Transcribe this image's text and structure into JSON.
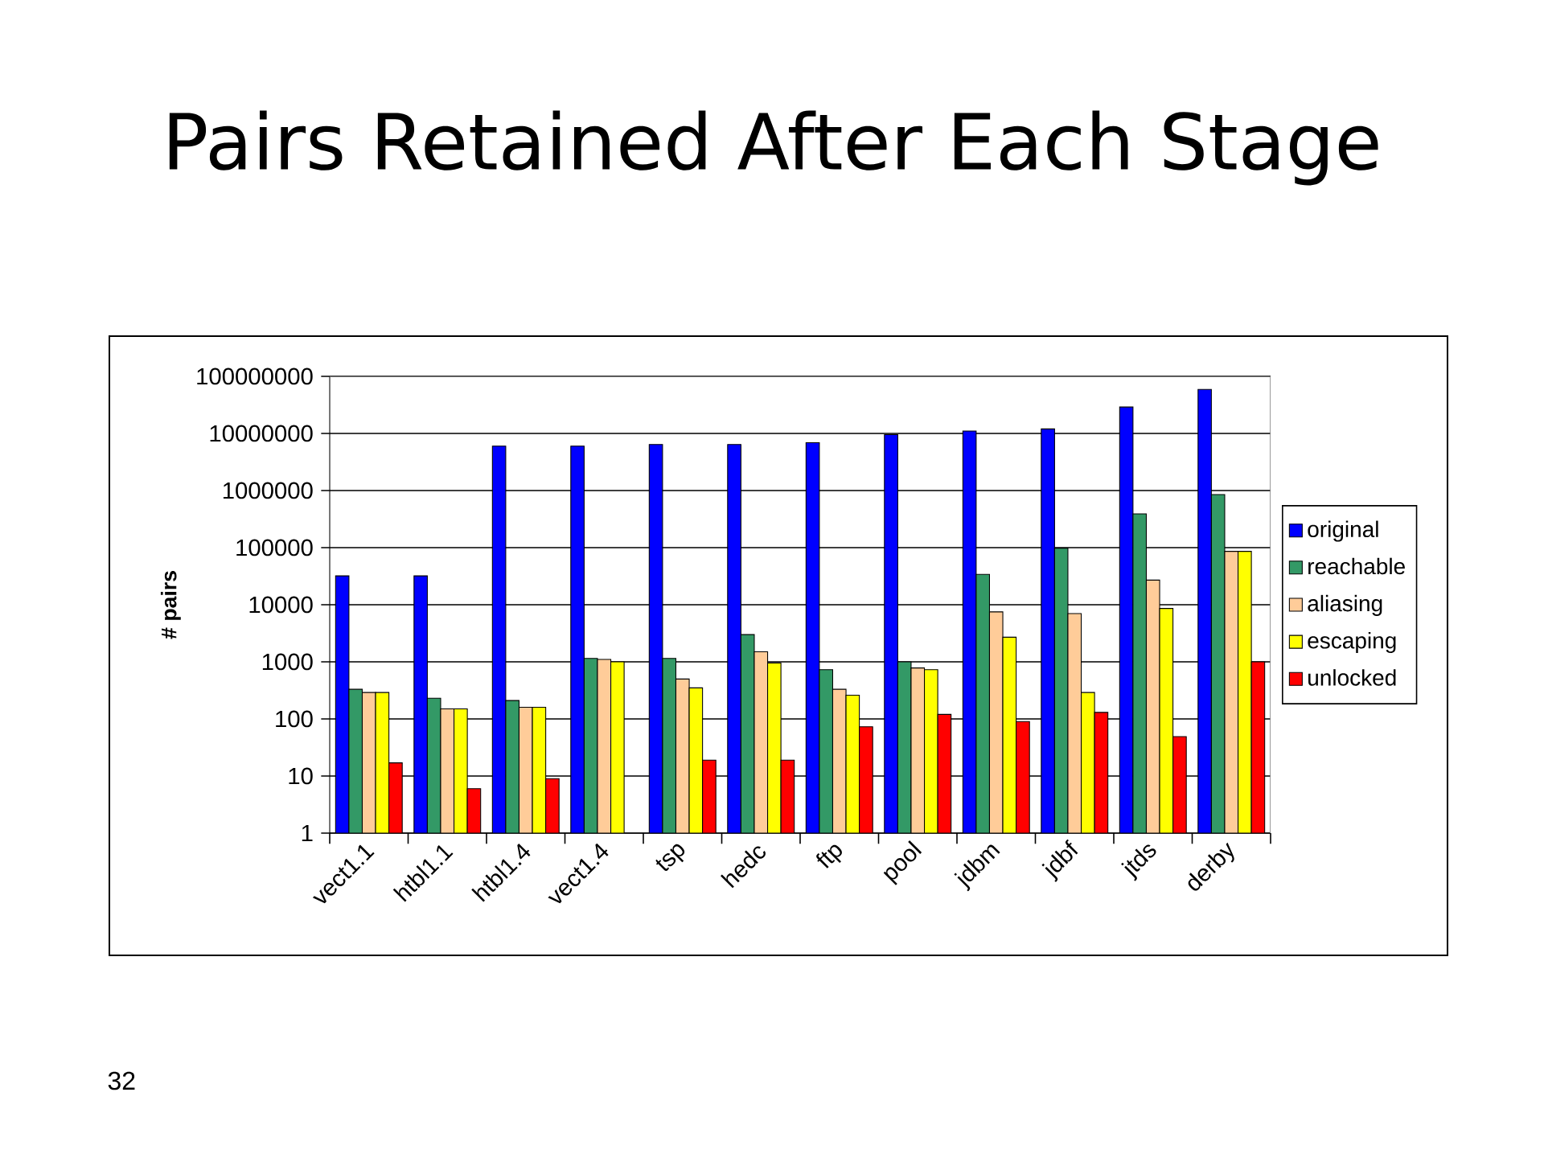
{
  "chart_data": {
    "type": "bar",
    "title": "Pairs Retained After Each Stage",
    "ylabel": "# pairs",
    "categories": [
      "vect1.1",
      "htbl1.1",
      "htbl1.4",
      "vect1.4",
      "tsp",
      "hedc",
      "ftp",
      "pool",
      "jdbm",
      "jdbf",
      "jtds",
      "derby"
    ],
    "series": [
      {
        "name": "original",
        "color": "#0000ff",
        "values": [
          32000,
          32000,
          6000000,
          6000000,
          6400000,
          6400000,
          6900000,
          9500000,
          11000000,
          12000000,
          29000000,
          59000000
        ]
      },
      {
        "name": "reachable",
        "color": "#339966",
        "values": [
          330,
          230,
          210,
          1150,
          1150,
          3000,
          730,
          1000,
          34000,
          98000,
          390000,
          850000
        ]
      },
      {
        "name": "aliasing",
        "color": "#ffcc99",
        "values": [
          290,
          150,
          160,
          1100,
          500,
          1500,
          330,
          780,
          7500,
          7000,
          27000,
          86000
        ]
      },
      {
        "name": "escaping",
        "color": "#ffff00",
        "values": [
          290,
          150,
          160,
          1000,
          350,
          950,
          260,
          730,
          2700,
          290,
          8600,
          86000
        ]
      },
      {
        "name": "unlocked",
        "color": "#ff0000",
        "values": [
          17,
          6,
          9,
          null,
          19,
          19,
          73,
          120,
          90,
          130,
          49,
          1000
        ]
      }
    ],
    "ylim": [
      1,
      100000000
    ],
    "yticks": [
      1,
      10,
      100,
      1000,
      10000,
      100000,
      1000000,
      10000000,
      100000000
    ],
    "log": true,
    "grid": "y",
    "legend": "right",
    "annotations": [
      "32"
    ]
  }
}
